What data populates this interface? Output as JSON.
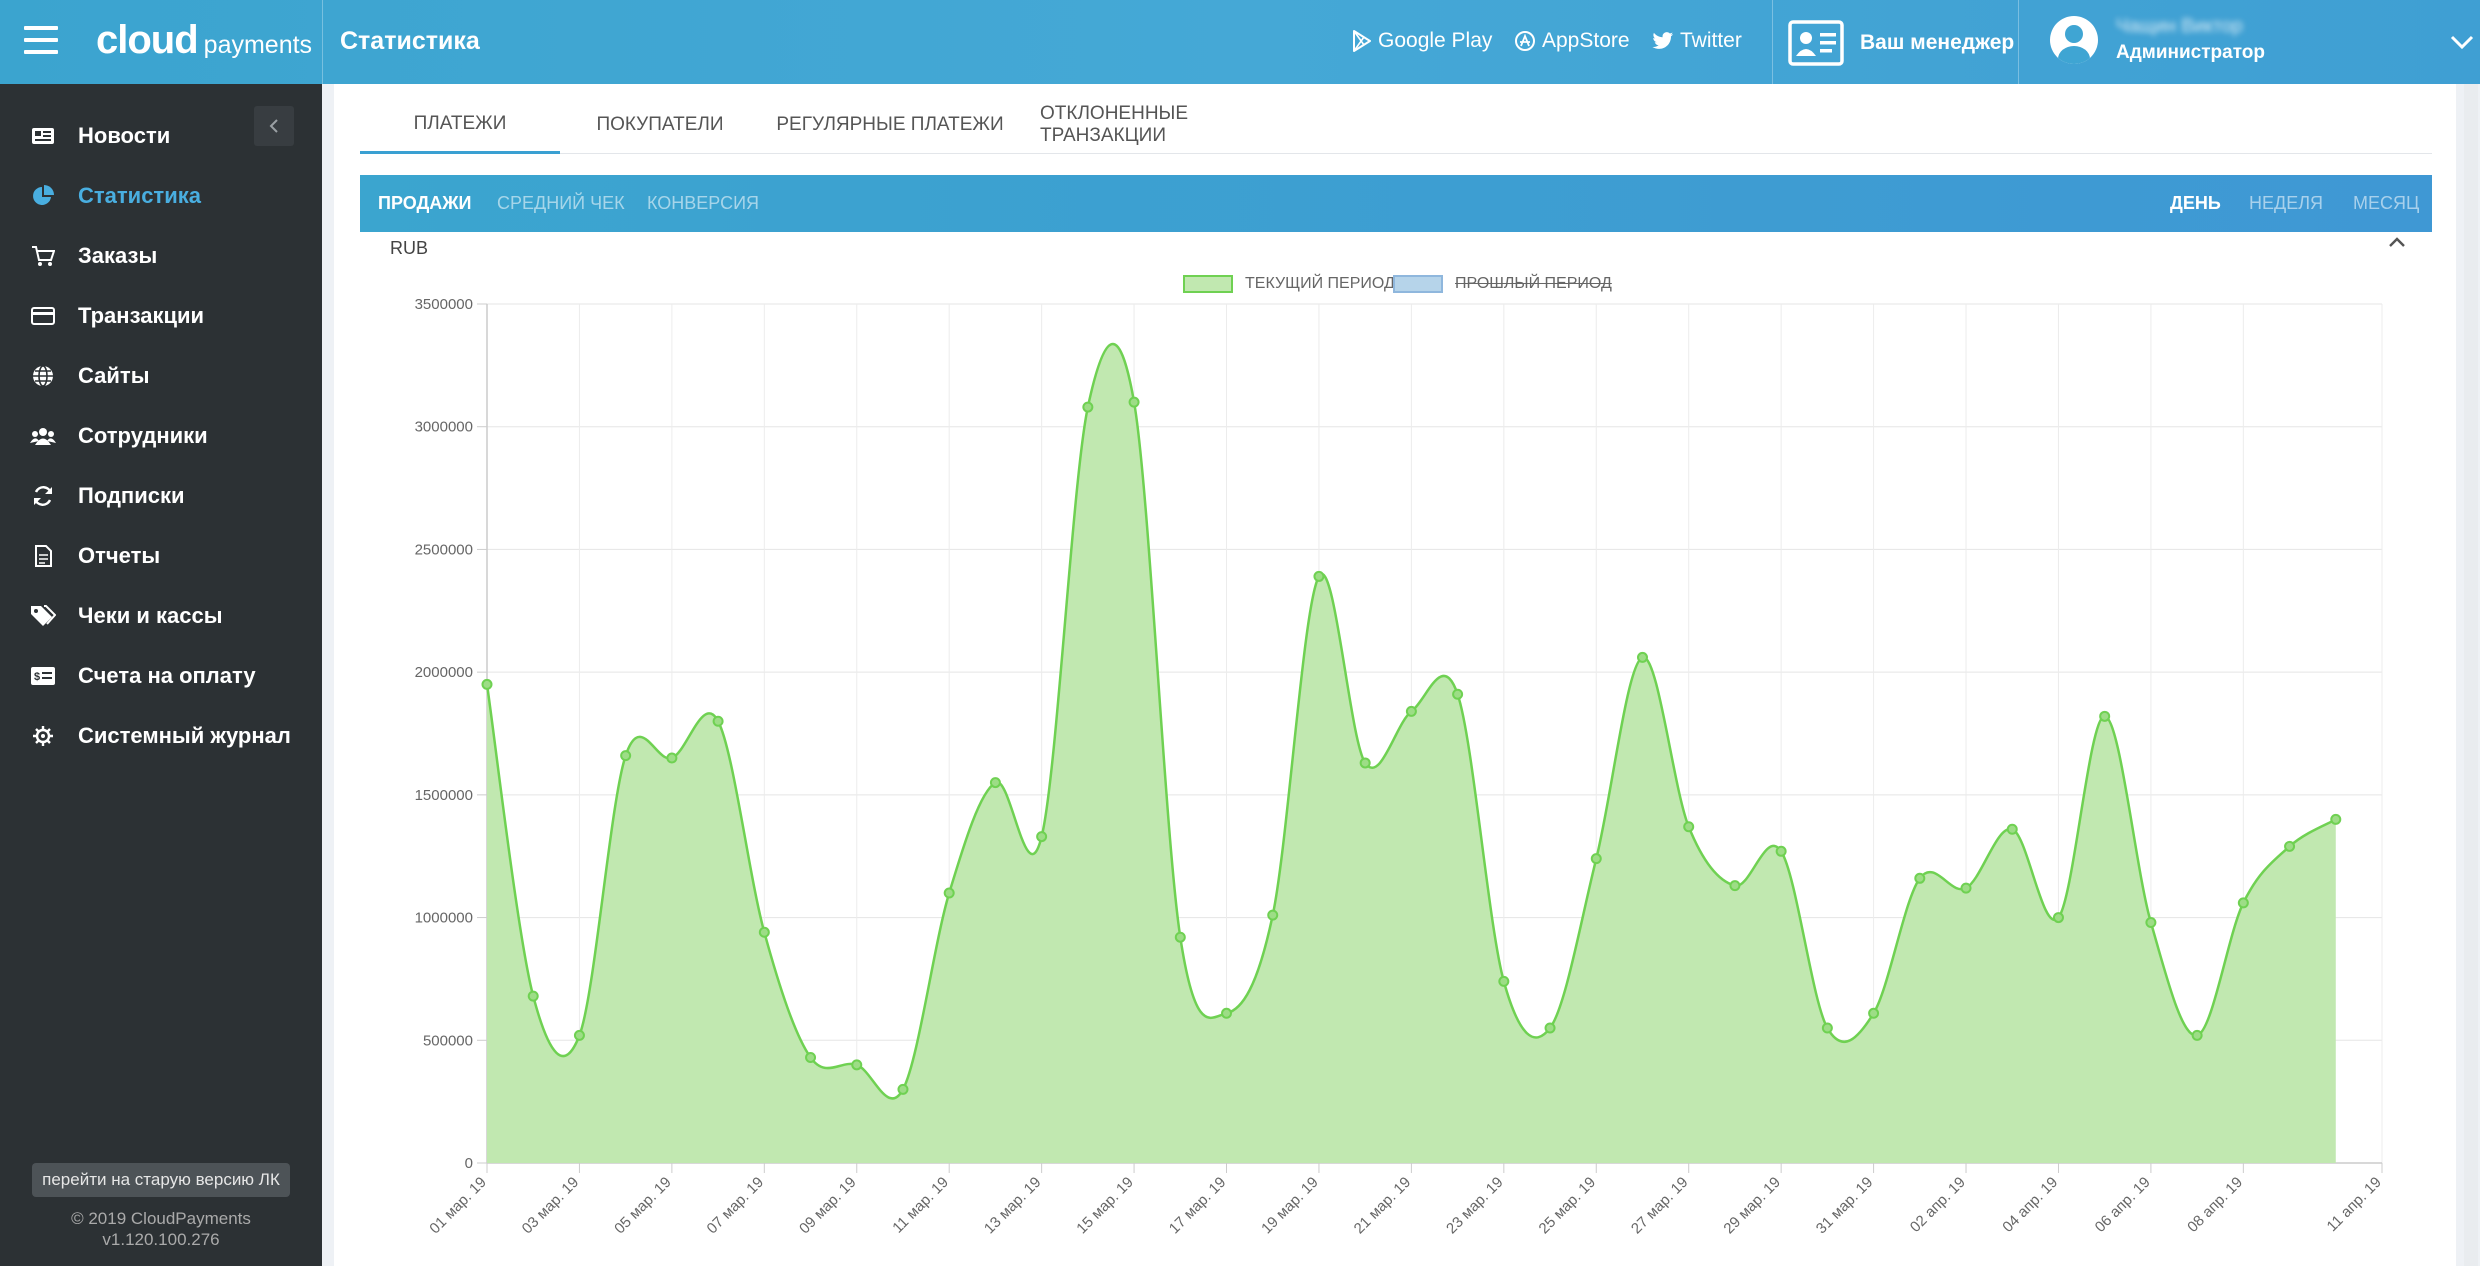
{
  "header": {
    "logo_main": "cloud",
    "logo_sub": "payments",
    "page_title": "Статистика",
    "links": [
      {
        "label": "Google Play",
        "icon": "google-play-icon"
      },
      {
        "label": "AppStore",
        "icon": "appstore-icon"
      },
      {
        "label": "Twitter",
        "icon": "twitter-icon"
      }
    ],
    "manager_label": "Ваш менеджер",
    "user_name": "Чащин Виктор",
    "user_role": "Администратор"
  },
  "sidebar": {
    "items": [
      {
        "label": "Новости",
        "icon": "news-icon",
        "active": false
      },
      {
        "label": "Статистика",
        "icon": "pie-chart-icon",
        "active": true
      },
      {
        "label": "Заказы",
        "icon": "cart-icon",
        "active": false
      },
      {
        "label": "Транзакции",
        "icon": "credit-card-icon",
        "active": false
      },
      {
        "label": "Сайты",
        "icon": "globe-icon",
        "active": false
      },
      {
        "label": "Сотрудники",
        "icon": "users-icon",
        "active": false
      },
      {
        "label": "Подписки",
        "icon": "refresh-icon",
        "active": false
      },
      {
        "label": "Отчеты",
        "icon": "document-icon",
        "active": false
      },
      {
        "label": "Чеки и кассы",
        "icon": "tags-icon",
        "active": false
      },
      {
        "label": "Счета на оплату",
        "icon": "invoice-icon",
        "active": false
      },
      {
        "label": "Системный журнал",
        "icon": "settings-log-icon",
        "active": false
      }
    ],
    "old_version_label": "перейти на старую версию ЛК",
    "copyright": "© 2019 CloudPayments",
    "version": "v1.120.100.276"
  },
  "tabs": [
    {
      "label": "ПЛАТЕЖИ",
      "active": true
    },
    {
      "label": "ПОКУПАТЕЛИ",
      "active": false
    },
    {
      "label": "РЕГУЛЯРНЫЕ ПЛАТЕЖИ",
      "active": false
    },
    {
      "label": "ОТКЛОНЕННЫЕ ТРАНЗАКЦИИ",
      "active": false
    }
  ],
  "subtabs_left": [
    {
      "label": "ПРОДАЖИ",
      "active": true
    },
    {
      "label": "СРЕДНИЙ ЧЕК",
      "active": false
    },
    {
      "label": "КОНВЕРСИЯ",
      "active": false
    }
  ],
  "subtabs_right": [
    {
      "label": "ДЕНЬ",
      "active": true
    },
    {
      "label": "НЕДЕЛЯ",
      "active": false
    },
    {
      "label": "МЕСЯЦ",
      "active": false
    }
  ],
  "currency": "RUB",
  "colors": {
    "accent": "#3aa0d2",
    "current_fill": "#c1e8b0",
    "current_line": "#6fd152",
    "previous_fill": "#b6d4ea",
    "previous_line": "#8fb7dd"
  },
  "chart_data": {
    "type": "area",
    "legend": [
      {
        "name": "ТЕКУЩИЙ ПЕРИОД",
        "hidden": false
      },
      {
        "name": "ПРОШЛЫЙ ПЕРИОД",
        "hidden": true
      }
    ],
    "legend_position": "top-center",
    "grid": true,
    "ylim": [
      0,
      3500000
    ],
    "yticks": [
      "0",
      "500000",
      "1000000",
      "1500000",
      "2000000",
      "2500000",
      "3000000",
      "3500000"
    ],
    "xtick_labels": [
      "01 мар. 19",
      "03 мар. 19",
      "05 мар. 19",
      "07 мар. 19",
      "09 мар. 19",
      "11 мар. 19",
      "13 мар. 19",
      "15 мар. 19",
      "17 мар. 19",
      "19 мар. 19",
      "21 мар. 19",
      "23 мар. 19",
      "25 мар. 19",
      "27 мар. 19",
      "29 мар. 19",
      "31 мар. 19",
      "02 апр. 19",
      "04 апр. 19",
      "06 апр. 19",
      "08 апр. 19",
      "11 апр. 19"
    ],
    "series": [
      {
        "name": "ТЕКУЩИЙ ПЕРИОД",
        "values": [
          1950000,
          680000,
          520000,
          1660000,
          1650000,
          1800000,
          940000,
          430000,
          400000,
          300000,
          1100000,
          1550000,
          1330000,
          3080000,
          3100000,
          920000,
          610000,
          1010000,
          2390000,
          1630000,
          1840000,
          1910000,
          740000,
          550000,
          1240000,
          2060000,
          1370000,
          1130000,
          1270000,
          550000,
          610000,
          1160000,
          1120000,
          1360000,
          1000000,
          1820000,
          980000,
          520000,
          1060000,
          1290000,
          1400000
        ]
      }
    ]
  }
}
